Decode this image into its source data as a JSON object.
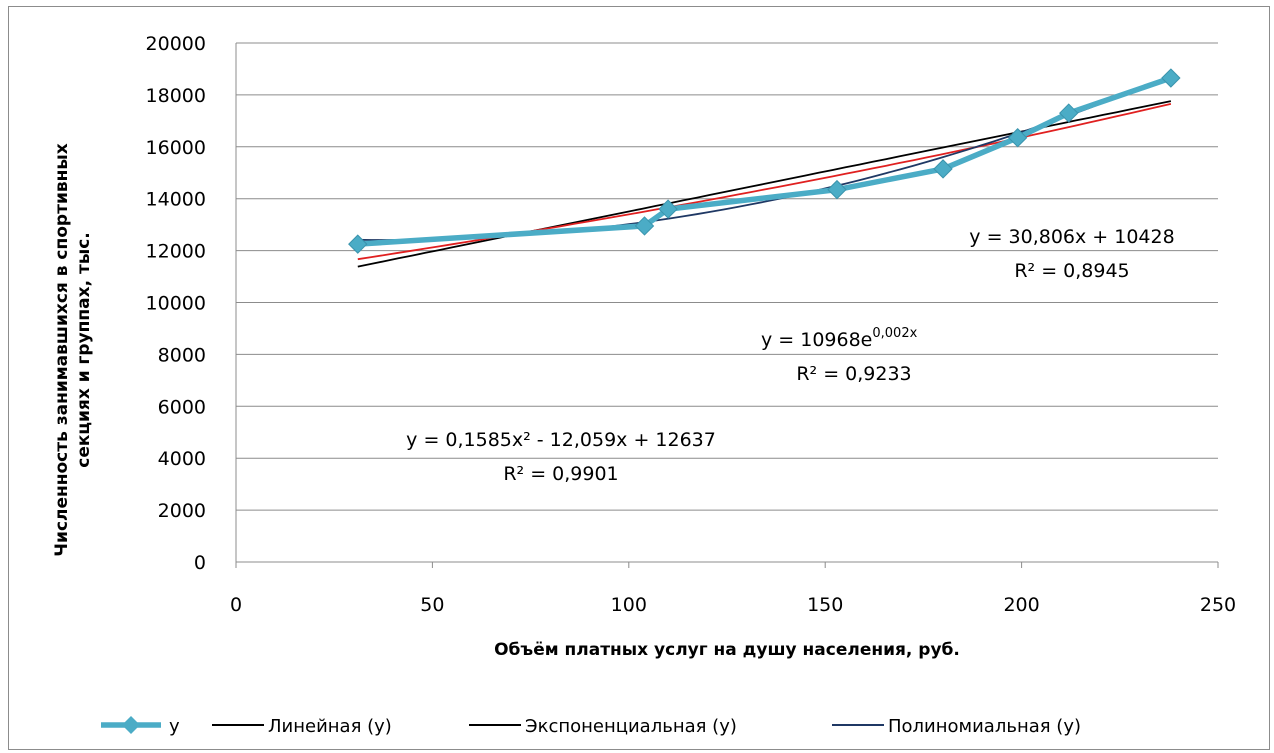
{
  "chart_data": {
    "type": "scatter",
    "title": "",
    "xlabel": "Объём платных  услуг  на душу населения,  руб.",
    "ylabel_line1": "Численность занимавшихся   в спортивных",
    "ylabel_line2": "секциях  и группах, тыс.",
    "xlim": [
      0,
      250
    ],
    "ylim": [
      0,
      20000
    ],
    "xticks": [
      "0",
      "50",
      "100",
      "150",
      "200",
      "250"
    ],
    "yticks": [
      "0",
      "2000",
      "4000",
      "6000",
      "8000",
      "10000",
      "12000",
      "14000",
      "16000",
      "18000",
      "20000"
    ],
    "grid": "horizontal",
    "legend_position": "bottom",
    "series": [
      {
        "name": "y",
        "color": "#4bacc6",
        "marker": "diamond",
        "x": [
          31,
          104,
          110,
          153,
          180,
          199,
          212,
          238
        ],
        "y": [
          12250,
          12950,
          13600,
          14350,
          15150,
          16350,
          17300,
          18650
        ]
      }
    ],
    "trendlines": [
      {
        "name": "Линейная (y)",
        "type": "linear",
        "color": "#000000",
        "a": 30.806,
        "b": 10428
      },
      {
        "name": "Экспоненциальная (y)",
        "type": "exponential",
        "color": "#e02020",
        "a": 10968,
        "k": 0.002
      },
      {
        "name": "Полиномиальная (y)",
        "type": "polynomial",
        "color": "#1f3864",
        "c2": 0.1585,
        "c1": -12.059,
        "c0": 12637
      }
    ],
    "trend_x_range": [
      31,
      238
    ],
    "annotations": {
      "linear_eq": "y = 30,806x + 10428",
      "linear_r2": "R² = 0,8945",
      "exp_eq_base": "y = 10968e",
      "exp_eq_power": "0,002x",
      "exp_r2": "R² = 0,9233",
      "poly_eq": "y = 0,1585x² - 12,059x + 12637",
      "poly_r2": "R² = 0,9901"
    }
  }
}
